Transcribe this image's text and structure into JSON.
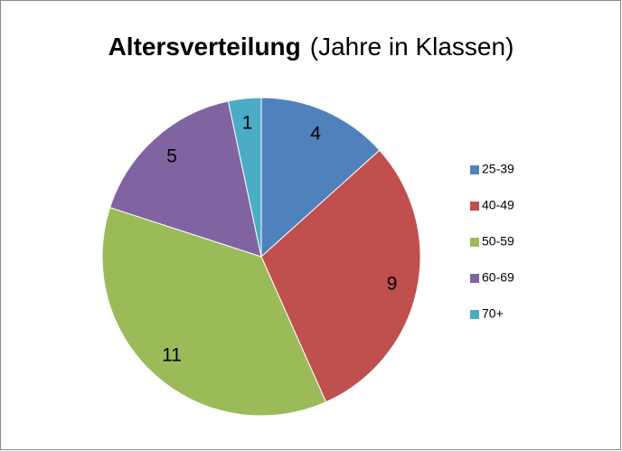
{
  "chart_data": {
    "type": "pie",
    "title": "Altersverteilung",
    "subtitle": "(Jahre in Klassen)",
    "categories": [
      "25-39",
      "40-49",
      "50-59",
      "60-69",
      "70+"
    ],
    "values": [
      4,
      9,
      11,
      5,
      1
    ],
    "colors": [
      "#4f81bd",
      "#c0504d",
      "#9bbb59",
      "#8064a2",
      "#4bacc6"
    ],
    "legend": "right"
  }
}
